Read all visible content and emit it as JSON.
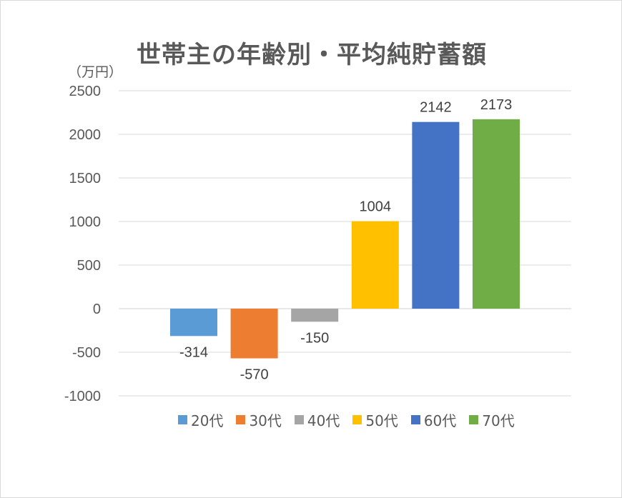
{
  "chart_data": {
    "type": "bar",
    "title": "世帯主の年齢別・平均純貯蓄額",
    "unit_label": "（万円）",
    "categories": [
      "20代",
      "30代",
      "40代",
      "50代",
      "60代",
      "70代"
    ],
    "values": [
      -314,
      -570,
      -150,
      1004,
      2142,
      2173
    ],
    "colors": [
      "#5B9BD5",
      "#ED7D31",
      "#A5A5A5",
      "#FFC000",
      "#4472C4",
      "#70AD47"
    ],
    "ylim": [
      -1000,
      2500
    ],
    "yticks": [
      2500,
      2000,
      1500,
      1000,
      500,
      0,
      -500,
      -1000
    ],
    "grid": true,
    "legend_position": "bottom"
  }
}
